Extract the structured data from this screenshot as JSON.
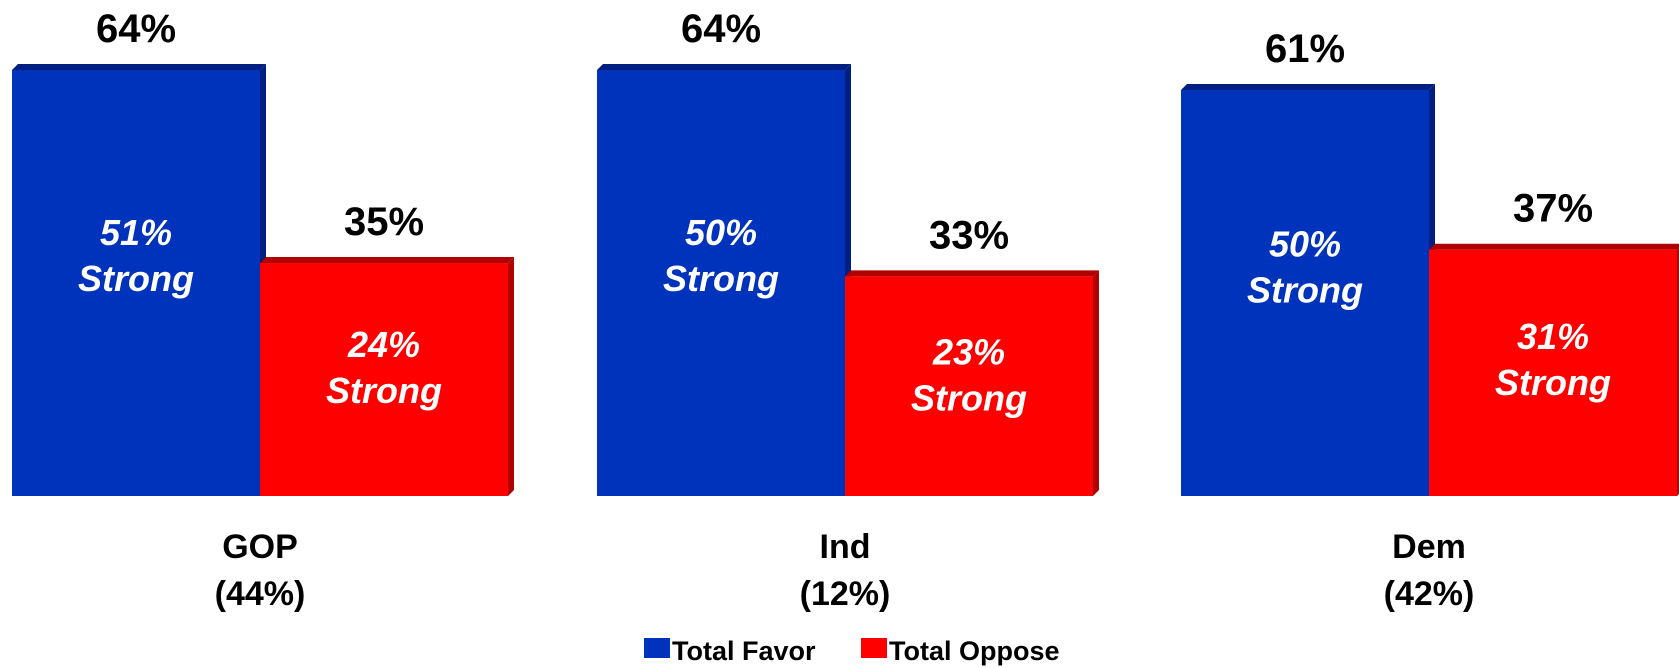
{
  "chart_data": {
    "type": "bar",
    "categories": [
      {
        "name": "GOP",
        "share": "(44%)"
      },
      {
        "name": "Ind",
        "share": "(12%)"
      },
      {
        "name": "Dem",
        "share": "(42%)"
      }
    ],
    "series": [
      {
        "name": "Total Favor",
        "color": "#0033bb",
        "values": [
          64,
          64,
          61
        ],
        "value_labels": [
          "64%",
          "64%",
          "61%"
        ],
        "strong_values": [
          51,
          50,
          50
        ],
        "strong_labels": [
          "51%",
          "50%",
          "50%"
        ]
      },
      {
        "name": "Total Oppose",
        "color": "#ff0000",
        "values": [
          35,
          33,
          37
        ],
        "value_labels": [
          "35%",
          "33%",
          "37%"
        ],
        "strong_values": [
          24,
          23,
          31
        ],
        "strong_labels": [
          "24%",
          "23%",
          "31%"
        ]
      }
    ],
    "strong_word": "Strong",
    "ylim": [
      0,
      64
    ],
    "grid": false,
    "legend": {
      "position": "bottom-center",
      "items": [
        "Total Favor",
        "Total Oppose"
      ]
    }
  }
}
